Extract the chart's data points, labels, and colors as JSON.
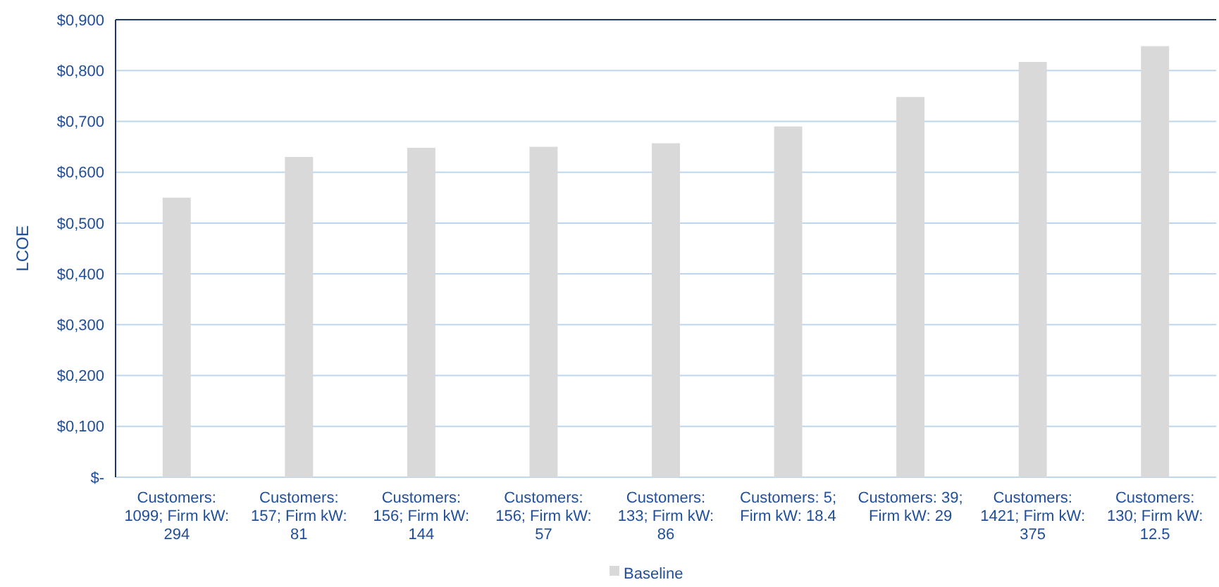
{
  "chart_data": {
    "type": "bar",
    "ylabel": "LCOE",
    "categories": [
      "Customers: 1099; Firm kW: 294",
      "Customers: 157; Firm kW: 81",
      "Customers: 156; Firm kW: 144",
      "Customers: 156; Firm kW: 57",
      "Customers: 133; Firm kW: 86",
      "Customers: 5; Firm kW: 18.4",
      "Customers: 39; Firm kW: 29",
      "Customers: 1421; Firm kW: 375",
      "Customers: 130; Firm kW: 12.5"
    ],
    "series": [
      {
        "name": "Baseline",
        "color": "#d9d9d9",
        "values": [
          0.55,
          0.63,
          0.648,
          0.65,
          0.657,
          0.69,
          0.748,
          0.817,
          0.848
        ]
      }
    ],
    "ylim": [
      0,
      0.9
    ],
    "yticks": [
      {
        "value": 0,
        "label": "$-"
      },
      {
        "value": 0.1,
        "label": "$0,100"
      },
      {
        "value": 0.2,
        "label": "$0,200"
      },
      {
        "value": 0.3,
        "label": "$0,300"
      },
      {
        "value": 0.4,
        "label": "$0,400"
      },
      {
        "value": 0.5,
        "label": "$0,500"
      },
      {
        "value": 0.6,
        "label": "$0,600"
      },
      {
        "value": 0.7,
        "label": "$0,700"
      },
      {
        "value": 0.8,
        "label": "$0,800"
      },
      {
        "value": 0.9,
        "label": "$0,900"
      }
    ],
    "grid": "y",
    "legend": "bottom"
  }
}
